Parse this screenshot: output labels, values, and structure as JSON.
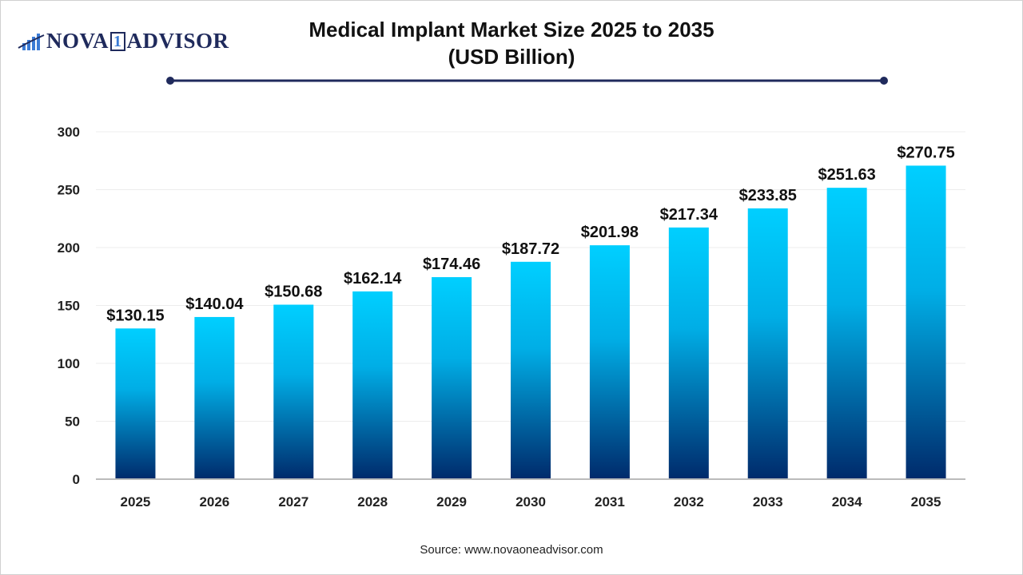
{
  "logo": {
    "text_left": "NOVA",
    "text_mid": "1",
    "text_right": "ADVISOR"
  },
  "chart_data": {
    "type": "bar",
    "title": "Medical Implant Market Size 2025 to 2035",
    "subtitle": "(USD Billion)",
    "categories": [
      "2025",
      "2026",
      "2027",
      "2028",
      "2029",
      "2030",
      "2031",
      "2032",
      "2033",
      "2034",
      "2035"
    ],
    "values": [
      130.15,
      140.04,
      150.68,
      162.14,
      174.46,
      187.72,
      201.98,
      217.34,
      233.85,
      251.63,
      270.75
    ],
    "data_labels": [
      "$130.15",
      "$140.04",
      "$150.68",
      "$162.14",
      "$174.46",
      "$187.72",
      "$201.98",
      "$217.34",
      "$233.85",
      "$251.63",
      "$270.75"
    ],
    "ylim": [
      0,
      300
    ],
    "yticks": [
      "0",
      "50",
      "100",
      "150",
      "200",
      "250",
      "300"
    ],
    "grid": true,
    "colors": {
      "bar_top": "#00cfff",
      "bar_bottom": "#002a6b",
      "title_line": "#1f2a5c"
    }
  },
  "source": "Source: www.novaoneadvisor.com"
}
